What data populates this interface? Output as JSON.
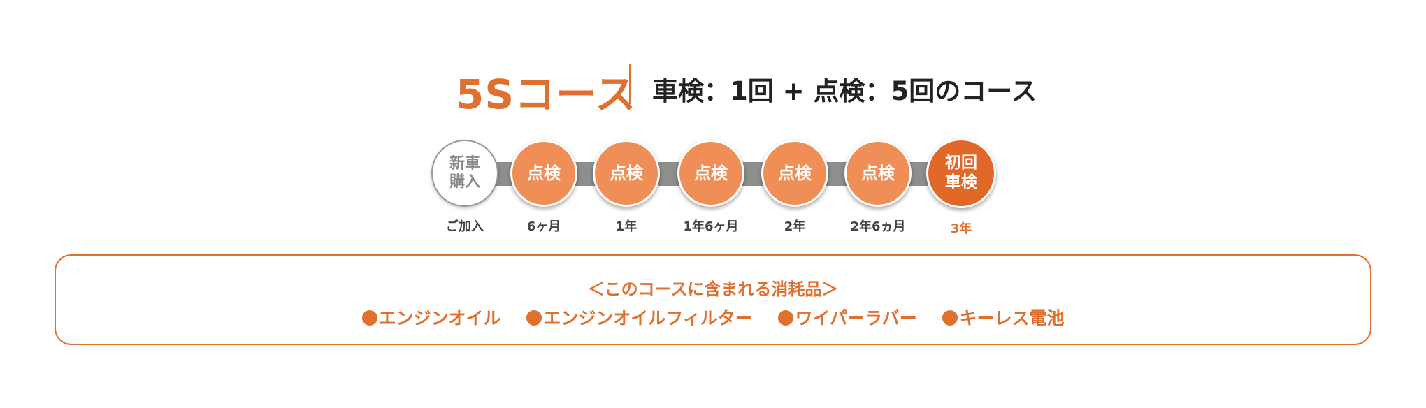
{
  "header": {
    "course_name": "5Sコース",
    "course_description": "車検：1回 + 点検：5回のコース"
  },
  "timeline": {
    "steps": [
      {
        "circle_text": "新車\n購入",
        "label": "ご加入"
      },
      {
        "circle_text": "点検",
        "label": "6ヶ月"
      },
      {
        "circle_text": "点検",
        "label": "1年"
      },
      {
        "circle_text": "点検",
        "label": "1年6ヶ月"
      },
      {
        "circle_text": "点検",
        "label": "2年"
      },
      {
        "circle_text": "点検",
        "label": "2年6ヵ月"
      },
      {
        "circle_text": "初回\n車検",
        "label": "3年"
      }
    ]
  },
  "consumables": {
    "title": "＜このコースに含まれる消耗品＞",
    "items": [
      "エンジンオイル",
      "エンジンオイルフィルター",
      "ワイパーラバー",
      "キーレス電池"
    ]
  },
  "colors": {
    "accent": "#e0702e",
    "inspect_circle": "#ef8f57",
    "final_circle": "#e2682a",
    "track": "#8e8e8e"
  },
  "icons": {
    "bullet": "filled-circle"
  }
}
